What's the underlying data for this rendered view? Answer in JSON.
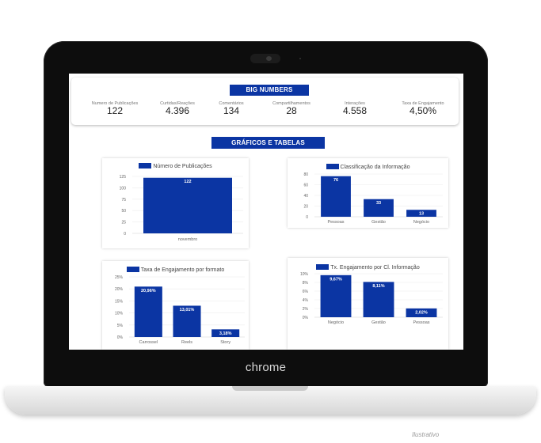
{
  "device": {
    "brand": "chrome",
    "footnote": "Ilustrativo"
  },
  "dashboard": {
    "big_numbers_title": "BIG NUMBERS",
    "charts_title": "GRÁFICOS E TABELAS",
    "metrics": [
      {
        "label": "Numero de Publicações",
        "value": "122"
      },
      {
        "label": "Curtidas/Reações",
        "value": "4.396"
      },
      {
        "label": "Comentários",
        "value": "134"
      },
      {
        "label": "Compartilhamentos",
        "value": "28"
      },
      {
        "label": "Interações",
        "value": "4.558"
      },
      {
        "label": "Taxa de Engajamento",
        "value": "4,50%"
      }
    ]
  },
  "colors": {
    "accent": "#0b35a3"
  },
  "chart_data": [
    {
      "type": "bar",
      "legend": "Número de Publicações",
      "categories": [
        "novembro"
      ],
      "values": [
        122
      ],
      "data_labels": [
        "122"
      ],
      "ylim": [
        0,
        125
      ],
      "yticks": [
        "0",
        "25",
        "50",
        "75",
        "100",
        "125"
      ],
      "grid": true,
      "legend_position": "top"
    },
    {
      "type": "bar",
      "legend": "Classificação da Informação",
      "categories": [
        "Pessoas",
        "Gestão",
        "Negócio"
      ],
      "values": [
        76,
        33,
        13
      ],
      "data_labels": [
        "76",
        "33",
        "13"
      ],
      "ylim": [
        0,
        80
      ],
      "yticks": [
        "0",
        "20",
        "40",
        "60",
        "80"
      ],
      "grid": true,
      "legend_position": "top"
    },
    {
      "type": "bar",
      "legend": "Taxa de Engajamento por formato",
      "categories": [
        "Carrossel",
        "Reels",
        "Story"
      ],
      "values": [
        20.96,
        13.01,
        3.18
      ],
      "data_labels": [
        "20,96%",
        "13,01%",
        "3,18%"
      ],
      "ylim": [
        0,
        25
      ],
      "yticks": [
        "0%",
        "5%",
        "10%",
        "15%",
        "20%",
        "25%"
      ],
      "grid": true,
      "legend_position": "top"
    },
    {
      "type": "bar",
      "legend": "Tx. Engajamento por Cl. Informação",
      "categories": [
        "Negócio",
        "Gestão",
        "Pessoas"
      ],
      "values": [
        9.67,
        8.11,
        2.02
      ],
      "data_labels": [
        "9,67%",
        "8,11%",
        "2,02%"
      ],
      "ylim": [
        0,
        10
      ],
      "yticks": [
        "0%",
        "2%",
        "4%",
        "6%",
        "8%",
        "10%"
      ],
      "grid": true,
      "legend_position": "top"
    }
  ]
}
